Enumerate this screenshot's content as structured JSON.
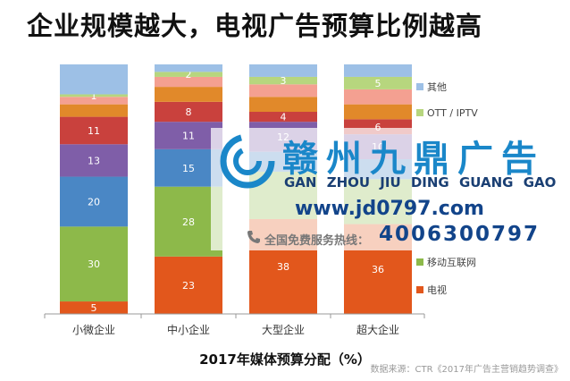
{
  "title": "企业规模越大，电视广告预算比例越高",
  "caption": "2017年媒体预算分配（%）",
  "source": "数据来源：CTR《2017年广告主营销趋势调查》",
  "watermark": {
    "name": "赣州九鼎广告",
    "pinyin": "GAN ZHOU JIU DING GUANG GAO",
    "url": "www.jd0797.com",
    "hotline_label": "全国免费服务热线：",
    "hotline_number": "4006300797",
    "logo_icon": "swirl-logo-icon",
    "phone_icon": "phone-icon"
  },
  "chart_data": {
    "type": "bar",
    "stacked": true,
    "categories": [
      "小微企业",
      "中小企业",
      "大型企业",
      "超大企业"
    ],
    "series": [
      {
        "name": "电视",
        "values": [
          5,
          23,
          38,
          36
        ],
        "labels": [
          "5",
          "23",
          "38",
          "36"
        ],
        "color": "#e2571c"
      },
      {
        "name": "移动互联网",
        "values": [
          30,
          28,
          19,
          18
        ],
        "labels": [
          "30",
          "28",
          "",
          ""
        ],
        "color": "#8db94a"
      },
      {
        "name": "",
        "values": [
          20,
          15,
          8,
          8
        ],
        "labels": [
          "20",
          "15",
          "",
          ""
        ],
        "color": "#4a87c5"
      },
      {
        "name": "",
        "values": [
          13,
          11,
          12,
          10
        ],
        "labels": [
          "13",
          "11",
          "12",
          "10"
        ],
        "color": "#7f5ea8"
      },
      {
        "name": "",
        "values": [
          11,
          8,
          4,
          6
        ],
        "labels": [
          "11",
          "8",
          "4",
          "6"
        ],
        "color": "#c9413d"
      },
      {
        "name": "",
        "values": [
          5,
          6,
          6,
          6
        ],
        "labels": [
          "",
          "",
          "",
          ""
        ],
        "color": "#e1892a"
      },
      {
        "name": "",
        "values": [
          3,
          4,
          5,
          6
        ],
        "labels": [
          "",
          "",
          "",
          ""
        ],
        "color": "#f4a091"
      },
      {
        "name": "OTT / IPTV",
        "values": [
          1,
          2,
          3,
          5
        ],
        "labels": [
          "1",
          "2",
          "3",
          "5"
        ],
        "color": "#b7d67e"
      },
      {
        "name": "其他",
        "values": [
          12,
          3,
          5,
          5
        ],
        "labels": [
          "",
          "",
          "",
          ""
        ],
        "color": "#9dc0e6"
      }
    ],
    "legend": [
      "其他",
      "OTT / IPTV",
      "移动互联网",
      "电视"
    ],
    "legend_position": "right",
    "ylim": [
      0,
      100
    ],
    "grid": false
  }
}
